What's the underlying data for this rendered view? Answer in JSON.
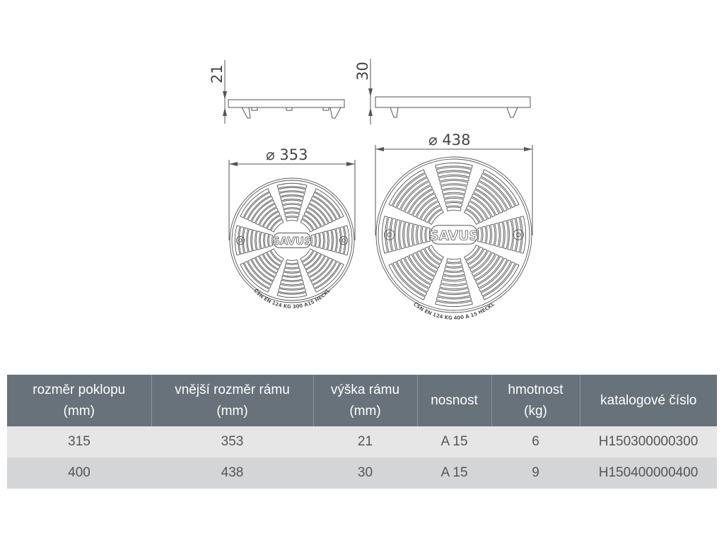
{
  "drawing": {
    "small": {
      "height_dim": "21",
      "diameter_dim": "353",
      "brand": "SAVUS",
      "marking": "ČSN EN 124 KG 300 A15 HECKL"
    },
    "large": {
      "height_dim": "30",
      "diameter_dim": "438",
      "brand": "SAVUS",
      "marking": "ČSN EN 124 KG 400 A 15 HECKL"
    },
    "diameter_symbol": "⌀"
  },
  "table": {
    "headers": [
      [
        "rozměr poklopu",
        "(mm)"
      ],
      [
        "vnější rozměr rámu",
        "(mm)"
      ],
      [
        "výška rámu",
        "(mm)"
      ],
      [
        "nosnost",
        ""
      ],
      [
        "hmotnost",
        "(kg)"
      ],
      [
        "katalogové číslo",
        ""
      ]
    ],
    "rows": [
      [
        "315",
        "353",
        "21",
        "A 15",
        "6",
        "H150300000300"
      ],
      [
        "400",
        "438",
        "30",
        "A 15",
        "9",
        "H150400000400"
      ]
    ],
    "colors": {
      "header": "#67727a",
      "row_odd": "#e6e6e6",
      "row_even": "#d4d5d6"
    }
  }
}
